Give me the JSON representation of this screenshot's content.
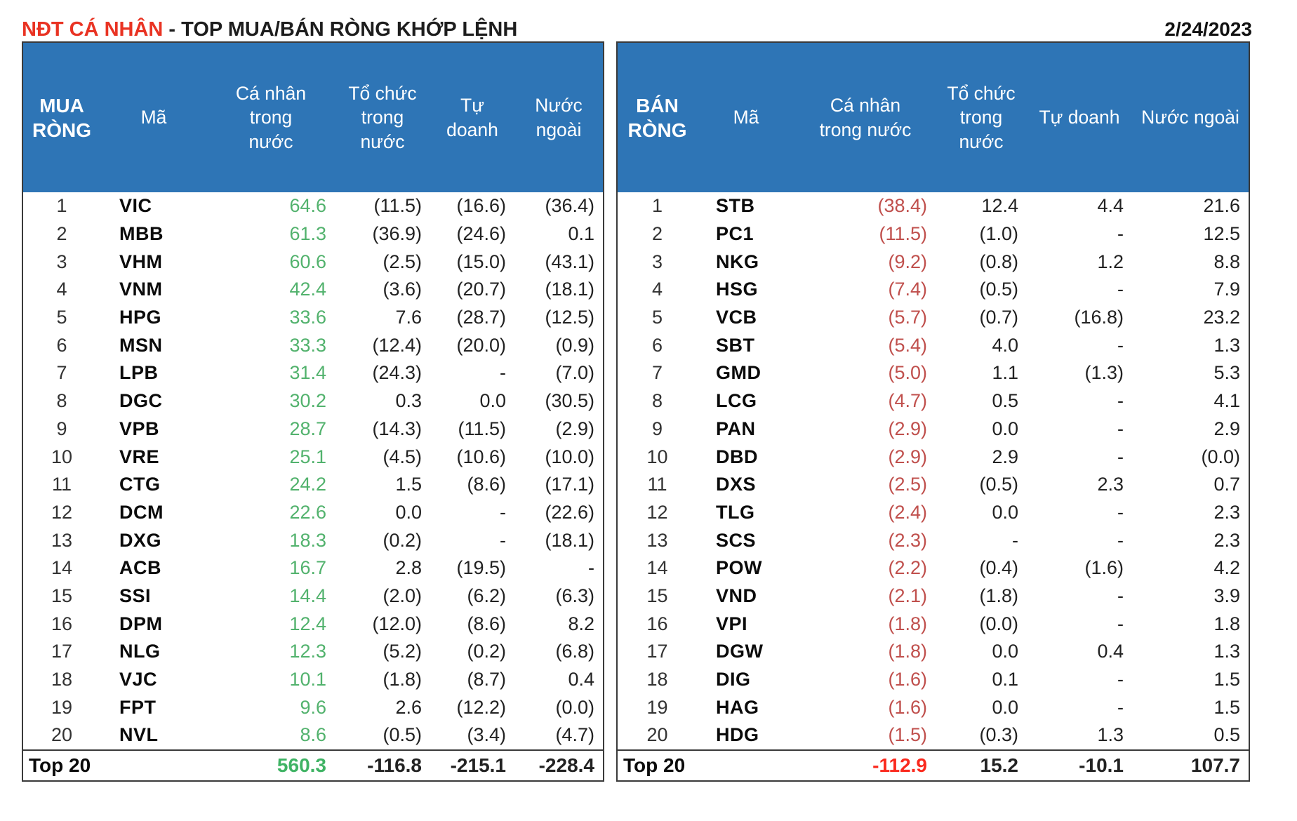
{
  "title": {
    "brand": "NĐT CÁ NHÂN",
    "rest": " - TOP MUA/BÁN RÒNG KHỚP LỆNH",
    "date": "2/24/2023"
  },
  "colors": {
    "header_bg": "#2E75B6",
    "header_text": "#FFFFFF",
    "buy_value_green": "#52B26D",
    "sell_value_red": "#C0504D",
    "total_sell_red": "#FA291D",
    "title_red": "#E93323",
    "border_dark": "#3A3A3A"
  },
  "tables": [
    {
      "id": "buy",
      "headers": [
        "MUA\nRÒNG",
        "Mã",
        "Cá nhân\ntrong\nnước",
        "Tổ chức\ntrong\nnước",
        "Tự\ndoanh",
        "Nước\nngoài"
      ],
      "rows": [
        [
          "1",
          "VIC",
          "64.6",
          "(11.5)",
          "(16.6)",
          "(36.4)"
        ],
        [
          "2",
          "MBB",
          "61.3",
          "(36.9)",
          "(24.6)",
          "0.1"
        ],
        [
          "3",
          "VHM",
          "60.6",
          "(2.5)",
          "(15.0)",
          "(43.1)"
        ],
        [
          "4",
          "VNM",
          "42.4",
          "(3.6)",
          "(20.7)",
          "(18.1)"
        ],
        [
          "5",
          "HPG",
          "33.6",
          "7.6",
          "(28.7)",
          "(12.5)"
        ],
        [
          "6",
          "MSN",
          "33.3",
          "(12.4)",
          "(20.0)",
          "(0.9)"
        ],
        [
          "7",
          "LPB",
          "31.4",
          "(24.3)",
          "-",
          "(7.0)"
        ],
        [
          "8",
          "DGC",
          "30.2",
          "0.3",
          "0.0",
          "(30.5)"
        ],
        [
          "9",
          "VPB",
          "28.7",
          "(14.3)",
          "(11.5)",
          "(2.9)"
        ],
        [
          "10",
          "VRE",
          "25.1",
          "(4.5)",
          "(10.6)",
          "(10.0)"
        ],
        [
          "11",
          "CTG",
          "24.2",
          "1.5",
          "(8.6)",
          "(17.1)"
        ],
        [
          "12",
          "DCM",
          "22.6",
          "0.0",
          "-",
          "(22.6)"
        ],
        [
          "13",
          "DXG",
          "18.3",
          "(0.2)",
          "-",
          "(18.1)"
        ],
        [
          "14",
          "ACB",
          "16.7",
          "2.8",
          "(19.5)",
          "-"
        ],
        [
          "15",
          "SSI",
          "14.4",
          "(2.0)",
          "(6.2)",
          "(6.3)"
        ],
        [
          "16",
          "DPM",
          "12.4",
          "(12.0)",
          "(8.6)",
          "8.2"
        ],
        [
          "17",
          "NLG",
          "12.3",
          "(5.2)",
          "(0.2)",
          "(6.8)"
        ],
        [
          "18",
          "VJC",
          "10.1",
          "(1.8)",
          "(8.7)",
          "0.4"
        ],
        [
          "19",
          "FPT",
          "9.6",
          "2.6",
          "(12.2)",
          "(0.0)"
        ],
        [
          "20",
          "NVL",
          "8.6",
          "(0.5)",
          "(3.4)",
          "(4.7)"
        ]
      ],
      "total": {
        "label": "Top 20",
        "values": [
          "560.3",
          "-116.8",
          "-215.1",
          "-228.4"
        ]
      }
    },
    {
      "id": "sell",
      "headers": [
        "BÁN\nRÒNG",
        "Mã",
        "Cá nhân\ntrong nước",
        "Tổ chức\ntrong\nnước",
        "Tự doanh",
        "Nước ngoài"
      ],
      "rows": [
        [
          "1",
          "STB",
          "(38.4)",
          "12.4",
          "4.4",
          "21.6"
        ],
        [
          "2",
          "PC1",
          "(11.5)",
          "(1.0)",
          "-",
          "12.5"
        ],
        [
          "3",
          "NKG",
          "(9.2)",
          "(0.8)",
          "1.2",
          "8.8"
        ],
        [
          "4",
          "HSG",
          "(7.4)",
          "(0.5)",
          "-",
          "7.9"
        ],
        [
          "5",
          "VCB",
          "(5.7)",
          "(0.7)",
          "(16.8)",
          "23.2"
        ],
        [
          "6",
          "SBT",
          "(5.4)",
          "4.0",
          "-",
          "1.3"
        ],
        [
          "7",
          "GMD",
          "(5.0)",
          "1.1",
          "(1.3)",
          "5.3"
        ],
        [
          "8",
          "LCG",
          "(4.7)",
          "0.5",
          "-",
          "4.1"
        ],
        [
          "9",
          "PAN",
          "(2.9)",
          "0.0",
          "-",
          "2.9"
        ],
        [
          "10",
          "DBD",
          "(2.9)",
          "2.9",
          "-",
          "(0.0)"
        ],
        [
          "11",
          "DXS",
          "(2.5)",
          "(0.5)",
          "2.3",
          "0.7"
        ],
        [
          "12",
          "TLG",
          "(2.4)",
          "0.0",
          "-",
          "2.3"
        ],
        [
          "13",
          "SCS",
          "(2.3)",
          "-",
          "-",
          "2.3"
        ],
        [
          "14",
          "POW",
          "(2.2)",
          "(0.4)",
          "(1.6)",
          "4.2"
        ],
        [
          "15",
          "VND",
          "(2.1)",
          "(1.8)",
          "-",
          "3.9"
        ],
        [
          "16",
          "VPI",
          "(1.8)",
          "(0.0)",
          "-",
          "1.8"
        ],
        [
          "17",
          "DGW",
          "(1.8)",
          "0.0",
          "0.4",
          "1.3"
        ],
        [
          "18",
          "DIG",
          "(1.6)",
          "0.1",
          "-",
          "1.5"
        ],
        [
          "19",
          "HAG",
          "(1.6)",
          "0.0",
          "-",
          "1.5"
        ],
        [
          "20",
          "HDG",
          "(1.5)",
          "(0.3)",
          "1.3",
          "0.5"
        ]
      ],
      "total": {
        "label": "Top 20",
        "values": [
          "-112.9",
          "15.2",
          "-10.1",
          "107.7"
        ]
      }
    }
  ]
}
